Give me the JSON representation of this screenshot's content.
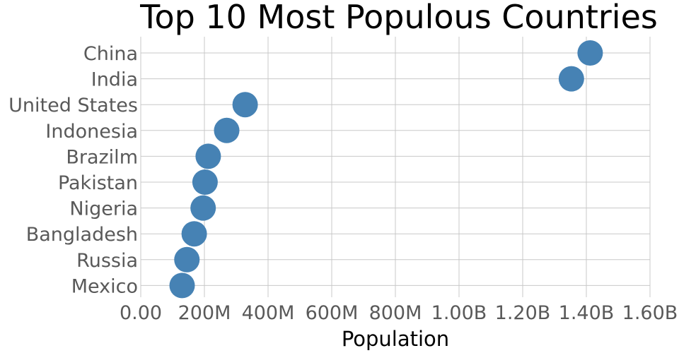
{
  "chart_data": {
    "type": "scatter",
    "title": "Top 10 Most Populous Countries",
    "xlabel": "Population",
    "ylabel": "",
    "xlim": [
      0,
      1600000000
    ],
    "x_ticks": [
      "0.00",
      "200M",
      "400M",
      "600M",
      "800M",
      "1.00B",
      "1.20B",
      "1.40B",
      "1.60B"
    ],
    "grid": true,
    "legend": "none",
    "categories": [
      "China",
      "India",
      "United States",
      "Indonesia",
      "Brazilm",
      "Pakistan",
      "Nigeria",
      "Bangladesh",
      "Russia",
      "Mexico"
    ],
    "values": [
      1412000000,
      1353000000,
      328000000,
      270000000,
      212000000,
      202000000,
      196000000,
      168000000,
      145000000,
      130000000
    ],
    "colors": {
      "marker": "#4682b4",
      "grid": "#c8c8c8",
      "tick_text": "#595959"
    }
  }
}
